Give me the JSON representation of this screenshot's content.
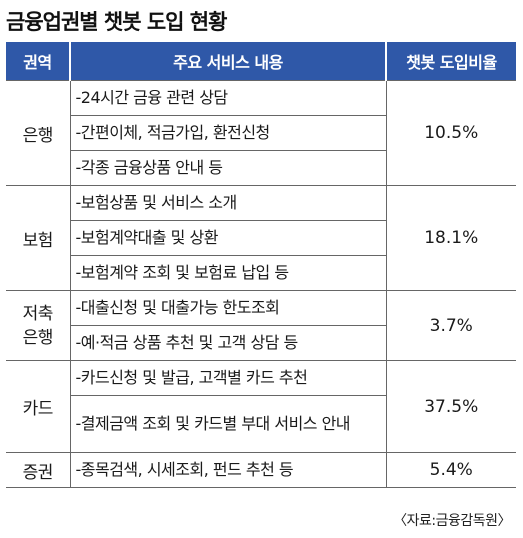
{
  "title": "금융업권별 챗봇 도입 현황",
  "headers": {
    "sector": "권역",
    "services": "주요 서비스 내용",
    "rate": "챗봇 도입비율"
  },
  "sections": [
    {
      "name": "은행",
      "rate": "10.5%",
      "services": [
        "-24시간 금융 관련 상담",
        "-간편이체, 적금가입, 환전신청",
        "-각종 금융상품 안내 등"
      ]
    },
    {
      "name": "보험",
      "rate": "18.1%",
      "services": [
        "-보험상품 및 서비스 소개",
        "-보험계약대출 및 상환",
        "-보험계약 조회 및 보험료 납입 등"
      ]
    },
    {
      "name": "저축\n은행",
      "rate": "3.7%",
      "services": [
        "-대출신청 및 대출가능 한도조회",
        "-예·적금 상품 추천 및 고객 상담 등"
      ]
    },
    {
      "name": "카드",
      "rate": "37.5%",
      "services": [
        "-카드신청 및 발급, 고객별 카드 추천",
        "-결제금액 조회 및 카드별 부대 서비스 안내"
      ]
    },
    {
      "name": "증권",
      "rate": "5.4%",
      "services": [
        "-종목검색, 시세조회, 펀드 추천 등"
      ]
    }
  ],
  "source": "〈자료:금융감독원〉"
}
